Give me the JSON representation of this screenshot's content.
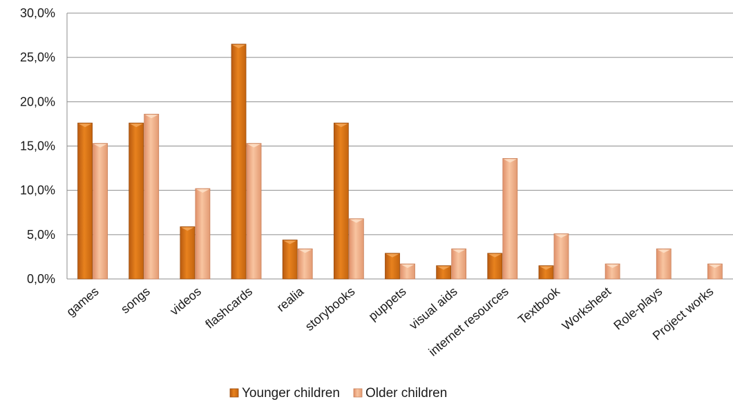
{
  "chart_data": {
    "type": "bar",
    "categories": [
      "games",
      "songs",
      "videos",
      "flashcards",
      "realia",
      "storybooks",
      "puppets",
      "visual aids",
      "internet resources",
      "Textbook",
      "Worksheet",
      "Role-plays",
      "Project works"
    ],
    "series": [
      {
        "name": "Younger children",
        "values": [
          17.6,
          17.6,
          5.9,
          26.5,
          4.4,
          17.6,
          2.9,
          1.5,
          2.9,
          1.5,
          0,
          0,
          0
        ]
      },
      {
        "name": "Older children",
        "values": [
          15.3,
          18.6,
          10.2,
          15.3,
          3.4,
          6.8,
          1.7,
          3.4,
          13.6,
          5.1,
          1.7,
          3.4,
          1.7
        ]
      }
    ],
    "yticks": [
      "0,0%",
      "5,0%",
      "10,0%",
      "15,0%",
      "20,0%",
      "25,0%",
      "30,0%"
    ],
    "ylim": [
      0,
      30
    ],
    "ytick_step": 5,
    "grid": true,
    "legend_position": "bottom",
    "colors": {
      "Younger children": "#d9731a",
      "Older children": "#f0a87c",
      "gridline": "#8c8c8c"
    }
  }
}
